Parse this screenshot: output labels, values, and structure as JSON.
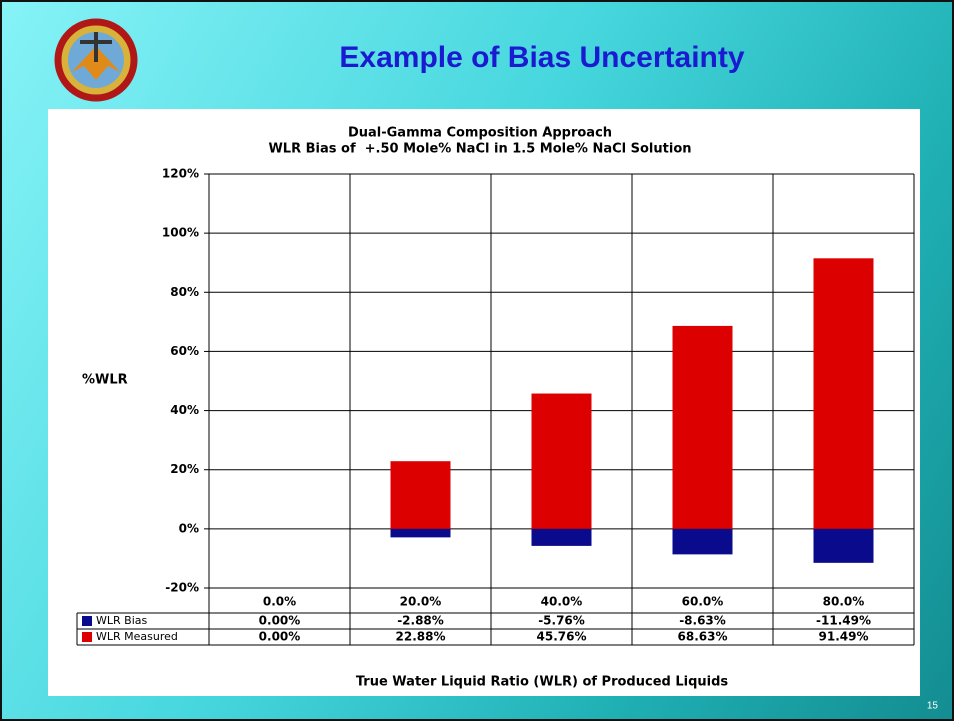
{
  "title": "Example of Bias Uncertainty",
  "page_number": "15",
  "chart_data": {
    "type": "bar",
    "title": "Dual-Gamma Composition Approach",
    "subtitle": "WLR Bias of  +.50 Mole% NaCl in 1.5 Mole% NaCl Solution",
    "y_label": "%WLR",
    "x_label": "True Water Liquid Ratio (WLR) of Produced Liquids",
    "categories": [
      "0.0%",
      "20.0%",
      "40.0%",
      "60.0%",
      "80.0%"
    ],
    "series": [
      {
        "name": "WLR Bias",
        "color": "#0a0a8c",
        "values": [
          0,
          -2.88,
          -5.76,
          -8.63,
          -11.49
        ],
        "value_labels": [
          "0.00%",
          "-2.88%",
          "-5.76%",
          "-8.63%",
          "-11.49%"
        ]
      },
      {
        "name": "WLR Measured",
        "color": "#dd0000",
        "values": [
          0,
          22.88,
          45.76,
          68.63,
          91.49
        ],
        "value_labels": [
          "0.00%",
          "22.88%",
          "45.76%",
          "68.63%",
          "91.49%"
        ]
      }
    ],
    "ylim": [
      -20,
      120
    ],
    "yticks": [
      {
        "value": -20,
        "label": "-20%"
      },
      {
        "value": 0,
        "label": "0%"
      },
      {
        "value": 20,
        "label": "20%"
      },
      {
        "value": 40,
        "label": "40%"
      },
      {
        "value": 60,
        "label": "60%"
      },
      {
        "value": 80,
        "label": "80%"
      },
      {
        "value": 100,
        "label": "100%"
      },
      {
        "value": 120,
        "label": "120%"
      }
    ],
    "grid": true
  }
}
